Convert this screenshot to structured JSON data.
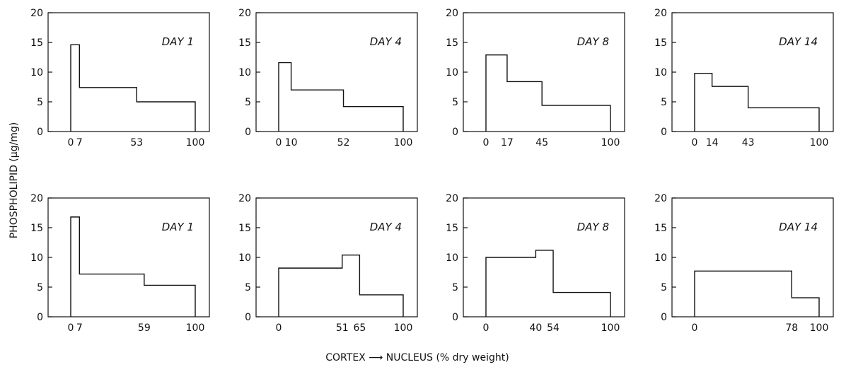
{
  "figure": {
    "ylabel": "PHOSPHOLIPID (μg/mg)",
    "xlabel": "CORTEX ⟶ NUCLEUS (% dry weight)"
  },
  "chart_data": [
    {
      "type": "bar",
      "title": "DAY 1",
      "ylim": [
        0,
        20
      ],
      "yticks": [
        0,
        5,
        10,
        15,
        20
      ],
      "xticks": [
        0,
        7,
        53,
        100
      ],
      "segments": [
        {
          "x0": 0,
          "x1": 7,
          "y": 14.6
        },
        {
          "x0": 7,
          "x1": 53,
          "y": 7.4
        },
        {
          "x0": 53,
          "x1": 100,
          "y": 5.0
        }
      ]
    },
    {
      "type": "bar",
      "title": "DAY 4",
      "ylim": [
        0,
        20
      ],
      "yticks": [
        0,
        5,
        10,
        15,
        20
      ],
      "xticks": [
        0,
        10,
        52,
        100
      ],
      "segments": [
        {
          "x0": 0,
          "x1": 10,
          "y": 11.6
        },
        {
          "x0": 10,
          "x1": 52,
          "y": 7.0
        },
        {
          "x0": 52,
          "x1": 100,
          "y": 4.2
        }
      ]
    },
    {
      "type": "bar",
      "title": "DAY 8",
      "ylim": [
        0,
        20
      ],
      "yticks": [
        0,
        5,
        10,
        15,
        20
      ],
      "xticks": [
        0,
        17,
        45,
        100
      ],
      "segments": [
        {
          "x0": 0,
          "x1": 17,
          "y": 12.9
        },
        {
          "x0": 17,
          "x1": 45,
          "y": 8.4
        },
        {
          "x0": 45,
          "x1": 100,
          "y": 4.4
        }
      ]
    },
    {
      "type": "bar",
      "title": "DAY 14",
      "ylim": [
        0,
        20
      ],
      "yticks": [
        0,
        5,
        10,
        15,
        20
      ],
      "xticks": [
        0,
        14,
        43,
        100
      ],
      "segments": [
        {
          "x0": 0,
          "x1": 14,
          "y": 9.8
        },
        {
          "x0": 14,
          "x1": 43,
          "y": 7.6
        },
        {
          "x0": 43,
          "x1": 100,
          "y": 4.0
        }
      ]
    },
    {
      "type": "bar",
      "title": "DAY 1",
      "ylim": [
        0,
        20
      ],
      "yticks": [
        0,
        5,
        10,
        15,
        20
      ],
      "xticks": [
        0,
        7,
        59,
        100
      ],
      "segments": [
        {
          "x0": 0,
          "x1": 7,
          "y": 16.8
        },
        {
          "x0": 7,
          "x1": 59,
          "y": 7.2
        },
        {
          "x0": 59,
          "x1": 100,
          "y": 5.3
        }
      ]
    },
    {
      "type": "bar",
      "title": "DAY 4",
      "ylim": [
        0,
        20
      ],
      "yticks": [
        0,
        5,
        10,
        15,
        20
      ],
      "xticks": [
        0,
        51,
        65,
        100
      ],
      "segments": [
        {
          "x0": 0,
          "x1": 51,
          "y": 8.2
        },
        {
          "x0": 51,
          "x1": 65,
          "y": 10.4
        },
        {
          "x0": 65,
          "x1": 100,
          "y": 3.7
        }
      ]
    },
    {
      "type": "bar",
      "title": "DAY 8",
      "ylim": [
        0,
        20
      ],
      "yticks": [
        0,
        5,
        10,
        15,
        20
      ],
      "xticks": [
        0,
        40,
        54,
        100
      ],
      "segments": [
        {
          "x0": 0,
          "x1": 40,
          "y": 10.0
        },
        {
          "x0": 40,
          "x1": 54,
          "y": 11.2
        },
        {
          "x0": 54,
          "x1": 100,
          "y": 4.1
        }
      ]
    },
    {
      "type": "bar",
      "title": "DAY 14",
      "ylim": [
        0,
        20
      ],
      "yticks": [
        0,
        5,
        10,
        15,
        20
      ],
      "xticks": [
        0,
        78,
        100
      ],
      "segments": [
        {
          "x0": 0,
          "x1": 78,
          "y": 7.7
        },
        {
          "x0": 78,
          "x1": 100,
          "y": 3.2
        }
      ]
    }
  ]
}
